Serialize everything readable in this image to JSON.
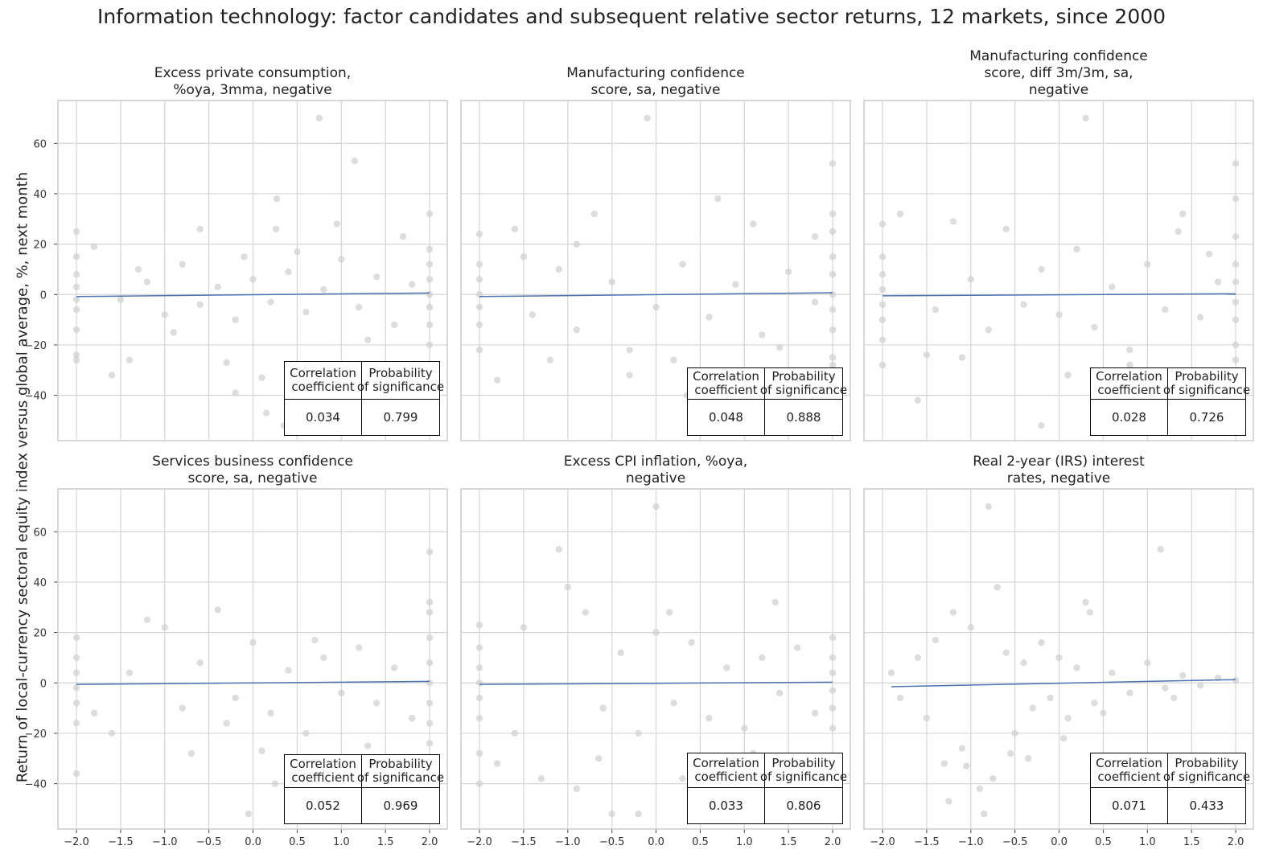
{
  "chart_data": [
    {
      "type": "scatter",
      "title": [
        "Excess private consumption,",
        "%oya, 3mma, negative"
      ],
      "xlim": [
        -2.21,
        2.2
      ],
      "ylim": [
        -58,
        77
      ],
      "correlation": "0.034",
      "probability": "0.799",
      "regression": [
        [
          -2,
          -0.8
        ],
        [
          2,
          0.6
        ]
      ],
      "points": [
        [
          -2,
          25
        ],
        [
          -2,
          15
        ],
        [
          -2,
          8
        ],
        [
          -2,
          3
        ],
        [
          -2,
          -2
        ],
        [
          -2,
          -6
        ],
        [
          -2,
          -14
        ],
        [
          -2,
          -24
        ],
        [
          -2,
          -26
        ],
        [
          2,
          32
        ],
        [
          2,
          18
        ],
        [
          2,
          12
        ],
        [
          2,
          6
        ],
        [
          2,
          0
        ],
        [
          2,
          -5
        ],
        [
          2,
          -12
        ],
        [
          2,
          -20
        ],
        [
          2,
          -28
        ],
        [
          2,
          -36
        ],
        [
          -1.8,
          19
        ],
        [
          -1.5,
          -2
        ],
        [
          -1.2,
          5
        ],
        [
          -1,
          -8
        ],
        [
          -0.8,
          12
        ],
        [
          -0.6,
          -4
        ],
        [
          -0.4,
          3
        ],
        [
          -0.2,
          -10
        ],
        [
          0,
          6
        ],
        [
          0.2,
          -3
        ],
        [
          0.4,
          9
        ],
        [
          0.6,
          -7
        ],
        [
          0.8,
          2
        ],
        [
          1,
          14
        ],
        [
          1.2,
          -5
        ],
        [
          1.4,
          7
        ],
        [
          1.6,
          -12
        ],
        [
          1.8,
          4
        ],
        [
          0.75,
          70
        ],
        [
          1.15,
          53
        ],
        [
          0.27,
          38
        ],
        [
          0.95,
          28
        ],
        [
          0.26,
          26
        ],
        [
          -0.6,
          26
        ],
        [
          -1.6,
          -32
        ],
        [
          -1.4,
          -26
        ],
        [
          0.35,
          -52
        ],
        [
          0.15,
          -47
        ],
        [
          -0.2,
          -39
        ],
        [
          0.1,
          -33
        ],
        [
          0.7,
          -30
        ],
        [
          -0.3,
          -27
        ],
        [
          -1.3,
          10
        ],
        [
          -0.9,
          -15
        ],
        [
          0.5,
          17
        ],
        [
          1.3,
          -18
        ],
        [
          -0.1,
          15
        ],
        [
          1.7,
          23
        ]
      ]
    },
    {
      "type": "scatter",
      "title": [
        "Manufacturing confidence",
        "score, sa, negative"
      ],
      "xlim": [
        -2.21,
        2.2
      ],
      "ylim": [
        -58,
        77
      ],
      "correlation": "0.048",
      "probability": "0.888",
      "regression": [
        [
          -2,
          -0.8
        ],
        [
          2,
          0.7
        ]
      ],
      "points": [
        [
          -2,
          24
        ],
        [
          -2,
          12
        ],
        [
          -2,
          6
        ],
        [
          -2,
          0
        ],
        [
          -2,
          -5
        ],
        [
          -2,
          -12
        ],
        [
          -2,
          -22
        ],
        [
          2,
          52
        ],
        [
          2,
          32
        ],
        [
          2,
          25
        ],
        [
          2,
          15
        ],
        [
          2,
          8
        ],
        [
          2,
          0
        ],
        [
          2,
          -6
        ],
        [
          2,
          -14
        ],
        [
          2,
          -25
        ],
        [
          2,
          -28
        ],
        [
          -1.8,
          -34
        ],
        [
          -1.6,
          26
        ],
        [
          -1.4,
          -8
        ],
        [
          -1.1,
          10
        ],
        [
          -0.9,
          -14
        ],
        [
          -0.7,
          32
        ],
        [
          -0.5,
          5
        ],
        [
          -0.3,
          -22
        ],
        [
          0,
          -5
        ],
        [
          0.3,
          12
        ],
        [
          0.6,
          -9
        ],
        [
          0.9,
          4
        ],
        [
          1.2,
          -16
        ],
        [
          1.5,
          9
        ],
        [
          1.8,
          -3
        ],
        [
          -0.1,
          70
        ],
        [
          0.7,
          38
        ],
        [
          1.1,
          28
        ],
        [
          -0.3,
          -32
        ],
        [
          0.5,
          -38
        ],
        [
          1.2,
          -47
        ],
        [
          0.35,
          -40
        ],
        [
          -1.2,
          -26
        ],
        [
          1.8,
          23
        ],
        [
          -0.9,
          20
        ],
        [
          0.2,
          -26
        ],
        [
          -1.5,
          15
        ],
        [
          1.4,
          -21
        ]
      ]
    },
    {
      "type": "scatter",
      "title": [
        "Manufacturing confidence",
        "score, diff 3m/3m, sa,",
        "negative"
      ],
      "xlim": [
        -2.21,
        2.2
      ],
      "ylim": [
        -58,
        77
      ],
      "correlation": "0.028",
      "probability": "0.726",
      "regression": [
        [
          -2,
          -0.5
        ],
        [
          2,
          0.3
        ]
      ],
      "points": [
        [
          -2,
          28
        ],
        [
          -2,
          15
        ],
        [
          -2,
          8
        ],
        [
          -2,
          2
        ],
        [
          -2,
          -4
        ],
        [
          -2,
          -10
        ],
        [
          -2,
          -18
        ],
        [
          -2,
          -28
        ],
        [
          2,
          52
        ],
        [
          2,
          38
        ],
        [
          2,
          23
        ],
        [
          2,
          12
        ],
        [
          2,
          5
        ],
        [
          2,
          -3
        ],
        [
          2,
          -10
        ],
        [
          2,
          -20
        ],
        [
          2,
          -26
        ],
        [
          -1.8,
          32
        ],
        [
          -1.6,
          -42
        ],
        [
          -1.4,
          -6
        ],
        [
          -1.2,
          29
        ],
        [
          -1,
          6
        ],
        [
          -0.8,
          -14
        ],
        [
          -0.6,
          26
        ],
        [
          -0.4,
          -4
        ],
        [
          -0.2,
          10
        ],
        [
          0,
          -8
        ],
        [
          0.2,
          18
        ],
        [
          0.4,
          -13
        ],
        [
          0.6,
          3
        ],
        [
          0.8,
          -22
        ],
        [
          1,
          12
        ],
        [
          1.2,
          -6
        ],
        [
          1.4,
          32
        ],
        [
          1.6,
          -9
        ],
        [
          1.8,
          5
        ],
        [
          0.3,
          70
        ],
        [
          -0.2,
          -52
        ],
        [
          0.4,
          -45
        ],
        [
          0.8,
          -28
        ],
        [
          -1.1,
          -25
        ],
        [
          1.35,
          25
        ],
        [
          0.1,
          -32
        ],
        [
          1.7,
          16
        ],
        [
          -1.5,
          -24
        ]
      ]
    },
    {
      "type": "scatter",
      "title": [
        "Services business confidence",
        "score, sa, negative"
      ],
      "xlim": [
        -2.21,
        2.2
      ],
      "ylim": [
        -58,
        77
      ],
      "correlation": "0.052",
      "probability": "0.969",
      "regression": [
        [
          -2,
          -0.6
        ],
        [
          2,
          0.6
        ]
      ],
      "points": [
        [
          -2,
          18
        ],
        [
          -2,
          10
        ],
        [
          -2,
          4
        ],
        [
          -2,
          -2
        ],
        [
          -2,
          -8
        ],
        [
          -2,
          -16
        ],
        [
          -2,
          -36
        ],
        [
          2,
          52
        ],
        [
          2,
          32
        ],
        [
          2,
          28
        ],
        [
          2,
          18
        ],
        [
          2,
          8
        ],
        [
          2,
          0
        ],
        [
          2,
          -8
        ],
        [
          2,
          -16
        ],
        [
          2,
          -24
        ],
        [
          -1.6,
          -20
        ],
        [
          -1.2,
          25
        ],
        [
          -1,
          22
        ],
        [
          -0.8,
          -10
        ],
        [
          -0.6,
          8
        ],
        [
          -0.4,
          29
        ],
        [
          -0.2,
          -6
        ],
        [
          0,
          16
        ],
        [
          0.2,
          -12
        ],
        [
          0.4,
          5
        ],
        [
          0.6,
          -20
        ],
        [
          0.8,
          10
        ],
        [
          1,
          -4
        ],
        [
          1.2,
          14
        ],
        [
          1.4,
          -8
        ],
        [
          1.6,
          6
        ],
        [
          1.8,
          -14
        ],
        [
          -0.05,
          -52
        ],
        [
          0.1,
          -27
        ],
        [
          0.5,
          -30
        ],
        [
          0.25,
          -40
        ],
        [
          0.9,
          -38
        ],
        [
          1.3,
          -25
        ],
        [
          -0.7,
          -28
        ],
        [
          -1.4,
          4
        ],
        [
          -0.3,
          -16
        ],
        [
          0.7,
          17
        ],
        [
          -1.8,
          -12
        ]
      ]
    },
    {
      "type": "scatter",
      "title": [
        "Excess CPI inflation, %oya,",
        "negative"
      ],
      "xlim": [
        -2.21,
        2.2
      ],
      "ylim": [
        -58,
        77
      ],
      "correlation": "0.033",
      "probability": "0.806",
      "regression": [
        [
          -2,
          -0.6
        ],
        [
          2,
          0.3
        ]
      ],
      "points": [
        [
          -2,
          23
        ],
        [
          -2,
          14
        ],
        [
          -2,
          6
        ],
        [
          -2,
          0
        ],
        [
          -2,
          -6
        ],
        [
          -2,
          -14
        ],
        [
          -2,
          -28
        ],
        [
          -2,
          -40
        ],
        [
          2,
          18
        ],
        [
          2,
          10
        ],
        [
          2,
          4
        ],
        [
          2,
          -3
        ],
        [
          2,
          -10
        ],
        [
          2,
          -18
        ],
        [
          -1.8,
          -32
        ],
        [
          -1.5,
          22
        ],
        [
          -1.3,
          -38
        ],
        [
          -1.1,
          53
        ],
        [
          -1,
          38
        ],
        [
          -0.9,
          -42
        ],
        [
          -0.8,
          28
        ],
        [
          -0.6,
          -10
        ],
        [
          -0.4,
          12
        ],
        [
          -0.2,
          -20
        ],
        [
          0,
          70
        ],
        [
          0,
          20
        ],
        [
          0.2,
          -8
        ],
        [
          0.4,
          16
        ],
        [
          0.6,
          -14
        ],
        [
          0.8,
          6
        ],
        [
          1,
          -18
        ],
        [
          1.2,
          10
        ],
        [
          1.4,
          -4
        ],
        [
          1.6,
          14
        ],
        [
          1.8,
          -12
        ],
        [
          -0.5,
          -52
        ],
        [
          -0.2,
          -52
        ],
        [
          0.3,
          -38
        ],
        [
          0.7,
          -35
        ],
        [
          1.35,
          32
        ],
        [
          -0.65,
          -30
        ],
        [
          0.15,
          28
        ],
        [
          -1.6,
          -20
        ],
        [
          1.1,
          -28
        ]
      ]
    },
    {
      "type": "scatter",
      "title": [
        "Real 2-year (IRS) interest",
        "rates, negative"
      ],
      "xlim": [
        -2.21,
        2.2
      ],
      "ylim": [
        -58,
        77
      ],
      "correlation": "0.071",
      "probability": "0.433",
      "regression": [
        [
          -1.9,
          -1.5
        ],
        [
          2,
          1.3
        ]
      ],
      "points": [
        [
          -1.9,
          4
        ],
        [
          -1.8,
          -6
        ],
        [
          -1.6,
          10
        ],
        [
          -1.5,
          -14
        ],
        [
          -1.4,
          17
        ],
        [
          -1.3,
          -32
        ],
        [
          -1.2,
          28
        ],
        [
          -1.1,
          -26
        ],
        [
          -1,
          22
        ],
        [
          -0.9,
          -42
        ],
        [
          -0.85,
          -52
        ],
        [
          -0.8,
          70
        ],
        [
          -0.7,
          38
        ],
        [
          -0.75,
          -38
        ],
        [
          -0.6,
          12
        ],
        [
          -0.5,
          -20
        ],
        [
          -0.4,
          8
        ],
        [
          -0.3,
          -10
        ],
        [
          -0.2,
          16
        ],
        [
          -0.1,
          -6
        ],
        [
          0,
          10
        ],
        [
          0.1,
          -14
        ],
        [
          0.2,
          6
        ],
        [
          0.3,
          32
        ],
        [
          0.35,
          28
        ],
        [
          0.4,
          -8
        ],
        [
          0.6,
          4
        ],
        [
          0.8,
          -4
        ],
        [
          1.15,
          53
        ],
        [
          1,
          8
        ],
        [
          1.2,
          -2
        ],
        [
          1.4,
          3
        ],
        [
          1.6,
          -1
        ],
        [
          1.8,
          2
        ],
        [
          2,
          1
        ],
        [
          -1.25,
          -47
        ],
        [
          -1.05,
          -33
        ],
        [
          -0.55,
          -28
        ],
        [
          0.05,
          -22
        ],
        [
          0.5,
          -12
        ],
        [
          -0.35,
          -30
        ],
        [
          1.3,
          -6
        ]
      ]
    }
  ],
  "figure_title": "Information technology: factor candidates and subsequent relative sector returns, 12 markets, since 2000",
  "ylabel": "Return of local-currency sectoral equity index versus global average, %, next month",
  "table_headers": {
    "corr": [
      "Correlation",
      "coefficient"
    ],
    "prob": [
      "Probability",
      "of significance"
    ]
  },
  "xticks": [
    -2.0,
    -1.5,
    -1.0,
    -0.5,
    0.0,
    0.5,
    1.0,
    1.5,
    2.0
  ],
  "yticks": [
    -40,
    -20,
    0,
    20,
    40,
    60
  ],
  "grid": true,
  "colors": {
    "points": "#cfcfcf",
    "regression": "#4c72b0",
    "grid": "#d5d5d5",
    "spine": "#cccccc"
  }
}
